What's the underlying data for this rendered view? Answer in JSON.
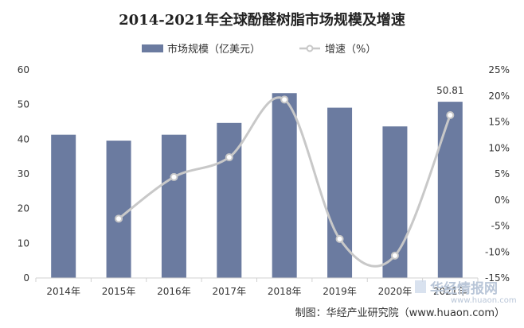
{
  "chart_data": {
    "type": "bar",
    "title": "2014-2021年全球酚醛树脂市场规模及增速",
    "categories": [
      "2014年",
      "2015年",
      "2016年",
      "2017年",
      "2018年",
      "2019年",
      "2020年",
      "2021年"
    ],
    "series": [
      {
        "name": "市场规模（亿美元）",
        "type": "bar",
        "axis": "left",
        "values": [
          41.3,
          39.6,
          41.3,
          44.7,
          53.3,
          49.1,
          43.7,
          50.81
        ],
        "color": "#6b7ba0"
      },
      {
        "name": "增速（%）",
        "type": "line",
        "axis": "right",
        "values": [
          null,
          -3.6,
          4.4,
          8.2,
          19.3,
          -7.5,
          -10.7,
          16.3
        ],
        "color": "#c8c8c8"
      }
    ],
    "data_labels": [
      {
        "category": "2021年",
        "text": "50.81"
      }
    ],
    "y_left": {
      "range": [
        0,
        60
      ],
      "ticks": [
        "0",
        "10",
        "20",
        "30",
        "40",
        "50",
        "60"
      ]
    },
    "y_right": {
      "range": [
        -15,
        25
      ],
      "ticks": [
        "-15%",
        "-10%",
        "-5%",
        "0%",
        "5%",
        "10%",
        "15%",
        "20%",
        "25%"
      ]
    },
    "legend_position": "top-center",
    "grid": false
  },
  "credit": "制图：华经产业研究院（www.huaon.com）",
  "watermark": {
    "brand": "华经情报网",
    "url": "www.huaon.com"
  }
}
